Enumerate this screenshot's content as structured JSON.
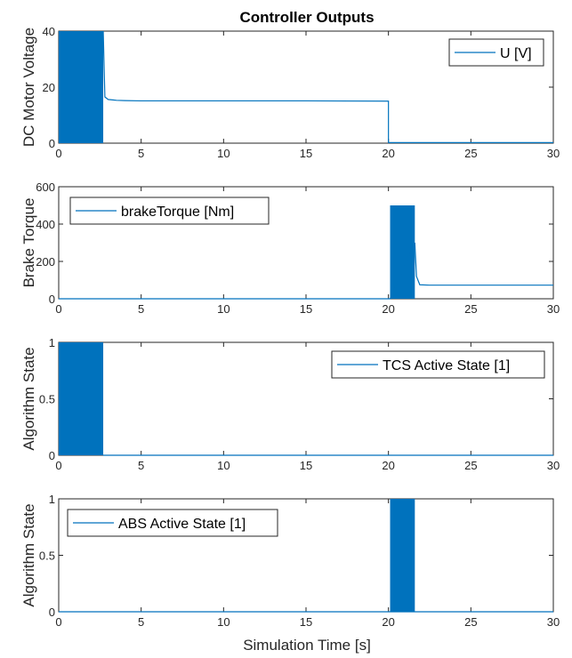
{
  "figure_title": "Controller Outputs",
  "shared_xlabel": "Simulation Time [s]",
  "colors": {
    "series": "#0072bd",
    "axes": "#262626",
    "background": "#ffffff"
  },
  "chart_data": [
    {
      "type": "line",
      "title": "Controller Outputs",
      "ylabel": "DC Motor Voltage",
      "xlabel": "",
      "xlim": [
        0,
        30
      ],
      "ylim": [
        0,
        40
      ],
      "xticks": [
        0,
        5,
        10,
        15,
        20,
        25,
        30
      ],
      "yticks": [
        0,
        20,
        40
      ],
      "legend": {
        "position": "top-right",
        "entries": [
          "U [V]"
        ]
      },
      "series": [
        {
          "name": "U [V]",
          "band": [
            0,
            2.7
          ],
          "band_range": [
            0,
            40
          ],
          "x": [
            2.7,
            2.8,
            3.0,
            3.5,
            4.0,
            5,
            10,
            15,
            20,
            20,
            30
          ],
          "y": [
            40,
            16.5,
            15.6,
            15.3,
            15.2,
            15.1,
            15.1,
            15.1,
            15.0,
            0.2,
            0.2
          ]
        }
      ]
    },
    {
      "type": "line",
      "ylabel": "Brake Torque",
      "xlabel": "",
      "xlim": [
        0,
        30
      ],
      "ylim": [
        0,
        600
      ],
      "xticks": [
        0,
        5,
        10,
        15,
        20,
        25,
        30
      ],
      "yticks": [
        0,
        200,
        400,
        600
      ],
      "legend": {
        "position": "top-left",
        "entries": [
          "brakeTorque [Nm]"
        ]
      },
      "series": [
        {
          "name": "brakeTorque [Nm]",
          "band": [
            20.1,
            21.6
          ],
          "band_range": [
            0,
            500
          ],
          "x": [
            0,
            20.1,
            21.6,
            21.7,
            21.9,
            22.5,
            25,
            30
          ],
          "y": [
            0,
            0,
            300,
            120,
            75,
            73,
            73,
            73
          ]
        }
      ]
    },
    {
      "type": "line",
      "ylabel": "Algorithm State",
      "xlabel": "",
      "xlim": [
        0,
        30
      ],
      "ylim": [
        0,
        1
      ],
      "xticks": [
        0,
        5,
        10,
        15,
        20,
        25,
        30
      ],
      "yticks": [
        0,
        0.5,
        1
      ],
      "legend": {
        "position": "top-right",
        "entries": [
          "TCS Active State [1]"
        ]
      },
      "series": [
        {
          "name": "TCS Active State [1]",
          "band": [
            0,
            2.7
          ],
          "band_range": [
            0,
            1
          ],
          "x": [
            2.7,
            30
          ],
          "y": [
            0,
            0
          ]
        }
      ]
    },
    {
      "type": "line",
      "ylabel": "Algorithm State",
      "xlabel": "Simulation Time [s]",
      "xlim": [
        0,
        30
      ],
      "ylim": [
        0,
        1
      ],
      "xticks": [
        0,
        5,
        10,
        15,
        20,
        25,
        30
      ],
      "yticks": [
        0,
        0.5,
        1
      ],
      "legend": {
        "position": "top-left",
        "entries": [
          "ABS Active State [1]"
        ]
      },
      "series": [
        {
          "name": "ABS Active State [1]",
          "band": [
            20.1,
            21.6
          ],
          "band_range": [
            0,
            1
          ],
          "x": [
            0,
            20.1,
            21.6,
            30
          ],
          "y": [
            0,
            0,
            0,
            0
          ]
        }
      ]
    }
  ]
}
